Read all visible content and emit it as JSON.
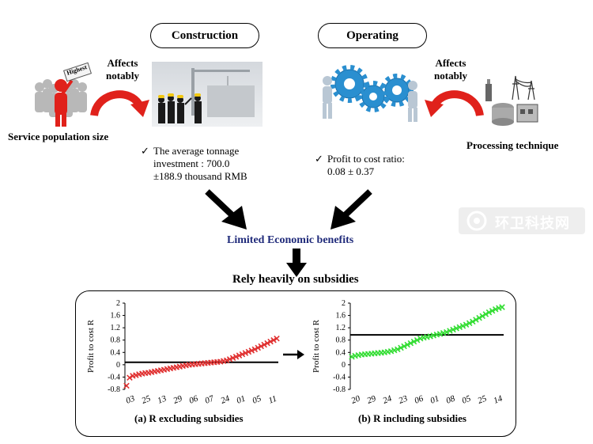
{
  "phases": {
    "construction": "Construction",
    "operating": "Operating"
  },
  "left_factor": {
    "affects": "Affects\nnotably",
    "sign": "Highest",
    "label": "Service population size"
  },
  "right_factor": {
    "affects": "Affects\nnotably",
    "label": "Processing technique"
  },
  "construction_note": {
    "check": "✓",
    "line1": "The average tonnage",
    "line2": "investment : 700.0",
    "line3": "±188.9 thousand RMB"
  },
  "operating_note": {
    "check": "✓",
    "line1": "Profit to cost ratio:",
    "line2": "0.08 ± 0.37"
  },
  "center_label": "Limited Economic benefits",
  "subsidy_label": "Rely heavily on subsidies",
  "watermark": "环卫科技网",
  "colors": {
    "center_label": "#1f2a7a",
    "arrow_red": "#e0211b",
    "series_a": "#e03030",
    "series_b": "#33dd33",
    "gear": "#2a8fd0"
  },
  "chart_data": [
    {
      "type": "scatter",
      "caption": "(a)  R excluding subsidies",
      "ylabel": "Profit  to cost R",
      "ylim": [
        -0.8,
        2
      ],
      "yticks": [
        "2",
        "1.6",
        "1.2",
        "0.8",
        "0.4",
        "0",
        "-0.4",
        "-0.8"
      ],
      "xticks": [
        "03",
        "25",
        "13",
        "29",
        "06",
        "07",
        "24",
        "01",
        "05",
        "11"
      ],
      "reference_line": 0.08,
      "marker": "x",
      "values": [
        -0.68,
        -0.42,
        -0.36,
        -0.34,
        -0.31,
        -0.29,
        -0.27,
        -0.26,
        -0.24,
        -0.22,
        -0.2,
        -0.18,
        -0.16,
        -0.14,
        -0.12,
        -0.1,
        -0.08,
        -0.06,
        -0.04,
        -0.02,
        0.0,
        0.01,
        0.02,
        0.03,
        0.04,
        0.05,
        0.06,
        0.07,
        0.08,
        0.09,
        0.1,
        0.12,
        0.14,
        0.18,
        0.22,
        0.26,
        0.3,
        0.34,
        0.38,
        0.42,
        0.46,
        0.5,
        0.55,
        0.6,
        0.65,
        0.7,
        0.75,
        0.8,
        0.85
      ]
    },
    {
      "type": "scatter",
      "caption": "(b)  R including subsidies",
      "ylabel": "Profit  to cost R",
      "ylim": [
        -0.8,
        2
      ],
      "yticks": [
        "2",
        "1.6",
        "1.2",
        "0.8",
        "0.4",
        "0",
        "-0.4",
        "-0.8"
      ],
      "xticks": [
        "20",
        "29",
        "24",
        "23",
        "06",
        "01",
        "08",
        "05",
        "25",
        "14"
      ],
      "reference_line": 0.97,
      "marker": "x",
      "values": [
        0.26,
        0.29,
        0.31,
        0.33,
        0.34,
        0.35,
        0.36,
        0.37,
        0.38,
        0.39,
        0.4,
        0.42,
        0.44,
        0.47,
        0.5,
        0.55,
        0.6,
        0.65,
        0.7,
        0.75,
        0.8,
        0.85,
        0.88,
        0.9,
        0.92,
        0.95,
        0.98,
        1.0,
        1.03,
        1.06,
        1.1,
        1.14,
        1.18,
        1.22,
        1.26,
        1.3,
        1.35,
        1.4,
        1.46,
        1.52,
        1.58,
        1.64,
        1.7,
        1.75,
        1.8,
        1.84,
        1.87
      ]
    }
  ]
}
